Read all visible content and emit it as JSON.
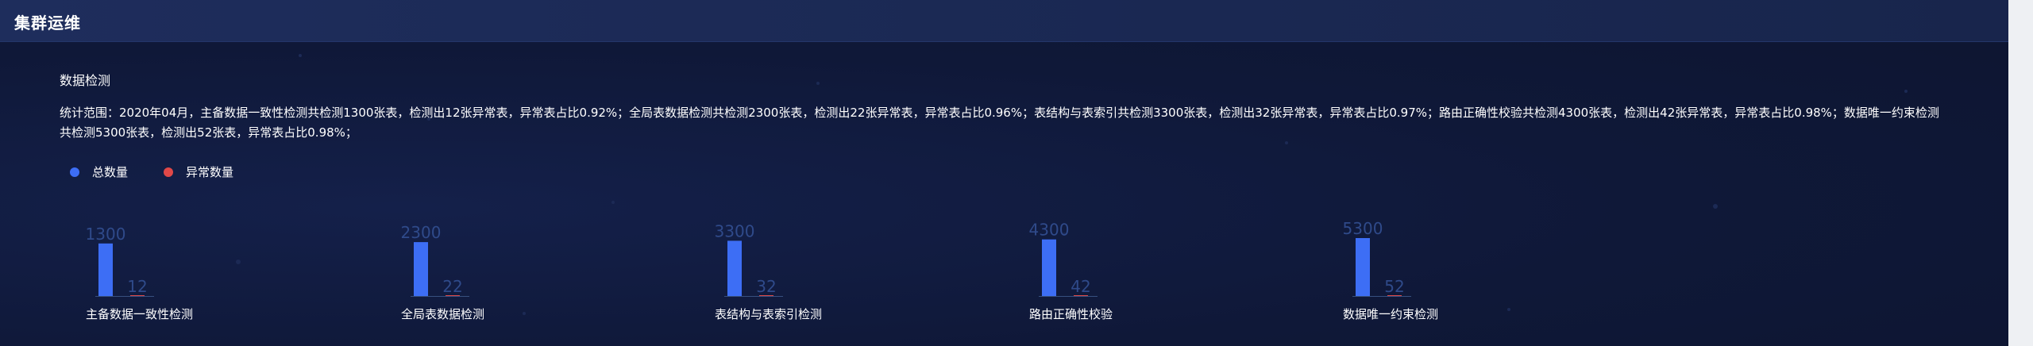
{
  "header": {
    "title": "集群运维"
  },
  "section": {
    "title": "数据检测",
    "summary": "统计范围：2020年04月，主备数据一致性检测共检测1300张表，检测出12张异常表，异常表占比0.92%；全局表数据检测共检测2300张表，检测出22张异常表，异常表占比0.96%；表结构与表索引共检测3300张表，检测出32张异常表，异常表占比0.97%；路由正确性校验共检测4300张表，检测出42张异常表，异常表占比0.98%；数据唯一约束检测共检测5300张表，检测出52张表，异常表占比0.98%；"
  },
  "legend": [
    {
      "label": "总数量",
      "color": "#3d6ef5"
    },
    {
      "label": "异常数量",
      "color": "#e04848"
    }
  ],
  "colors": {
    "total": "#3d6ef5",
    "abnormal": "#e04848",
    "value_label": "#2f4a8a",
    "axis": "#37507f"
  },
  "chart_data": {
    "type": "bar",
    "categories": [
      "主备数据一致性检测",
      "全局表数据检测",
      "表结构与表索引检测",
      "路由正确性校验",
      "数据唯一约束检测"
    ],
    "series": [
      {
        "name": "总数量",
        "values": [
          1300,
          2300,
          3300,
          4300,
          5300
        ]
      },
      {
        "name": "异常数量",
        "values": [
          12,
          22,
          32,
          42,
          52
        ]
      }
    ],
    "legend_position": "top-left",
    "grid": false
  }
}
